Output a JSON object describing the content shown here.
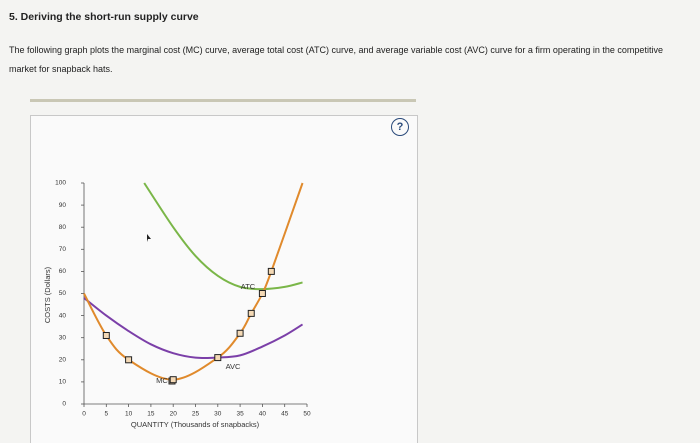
{
  "header": {
    "title": "5. Deriving the short-run supply curve",
    "text": "The following graph plots the marginal cost (MC) curve, average total cost (ATC) curve, and average variable cost (AVC) curve for a firm operating in the competitive market for snapback hats."
  },
  "chart_data": {
    "type": "line",
    "x_label": "QUANTITY (Thousands of snapbacks)",
    "y_label": "COSTS (Dollars)",
    "xlim": [
      0,
      50
    ],
    "xticks": [
      0,
      5,
      10,
      15,
      20,
      25,
      30,
      35,
      40,
      45,
      50
    ],
    "ylim": [
      0,
      100
    ],
    "yticks": [
      0,
      10,
      20,
      30,
      40,
      50,
      60,
      70,
      80,
      90,
      100
    ],
    "series": [
      {
        "name": "ATC",
        "color": "#7ab648",
        "x": [
          13.5,
          20,
          25,
          30,
          35,
          40,
          45,
          49
        ],
        "values": [
          100,
          80,
          67,
          58,
          53,
          52,
          53,
          55
        ]
      },
      {
        "name": "AVC",
        "color": "#7b3fa8",
        "x": [
          0,
          5,
          10,
          15,
          20,
          25,
          30,
          35,
          40,
          45,
          49
        ],
        "values": [
          48,
          40,
          33,
          27,
          23,
          21,
          21,
          22,
          26,
          31,
          36
        ]
      },
      {
        "name": "MC",
        "color": "#e08a2c",
        "x": [
          0,
          5,
          10,
          20,
          30,
          35,
          37.5,
          40,
          42,
          49
        ],
        "values": [
          50,
          31,
          20,
          11,
          21,
          32,
          41,
          50,
          60,
          100
        ]
      }
    ]
  }
}
